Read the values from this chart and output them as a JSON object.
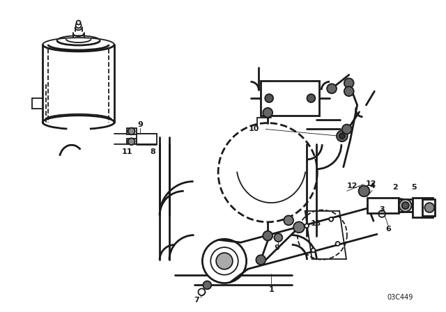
{
  "bg_color": "#ffffff",
  "line_color": "#1a1a1a",
  "fig_width": 6.4,
  "fig_height": 4.48,
  "dpi": 100,
  "catalog_num": "03C449"
}
